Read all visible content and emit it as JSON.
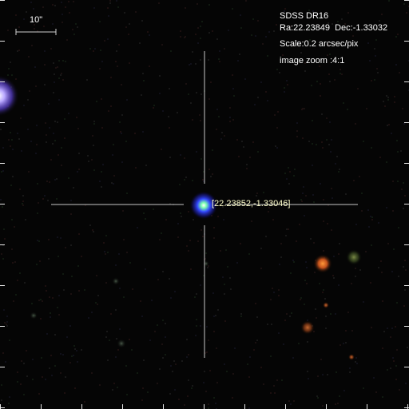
{
  "survey": "SDSS DR16",
  "coords": "Ra:22.23849  Dec:-1.33032",
  "scale": "Scale:0.2 arcsec/pix",
  "zoom": "image zoom :4:1",
  "scale_bar_label": "10\"",
  "target": {
    "label": "[22.23852,-1.33046]"
  },
  "colors": {
    "crosshair": "#c8c8c8",
    "tick": "#e6e6e6",
    "label_text": "#ffffff",
    "target_label_text": "#ffffcc"
  }
}
